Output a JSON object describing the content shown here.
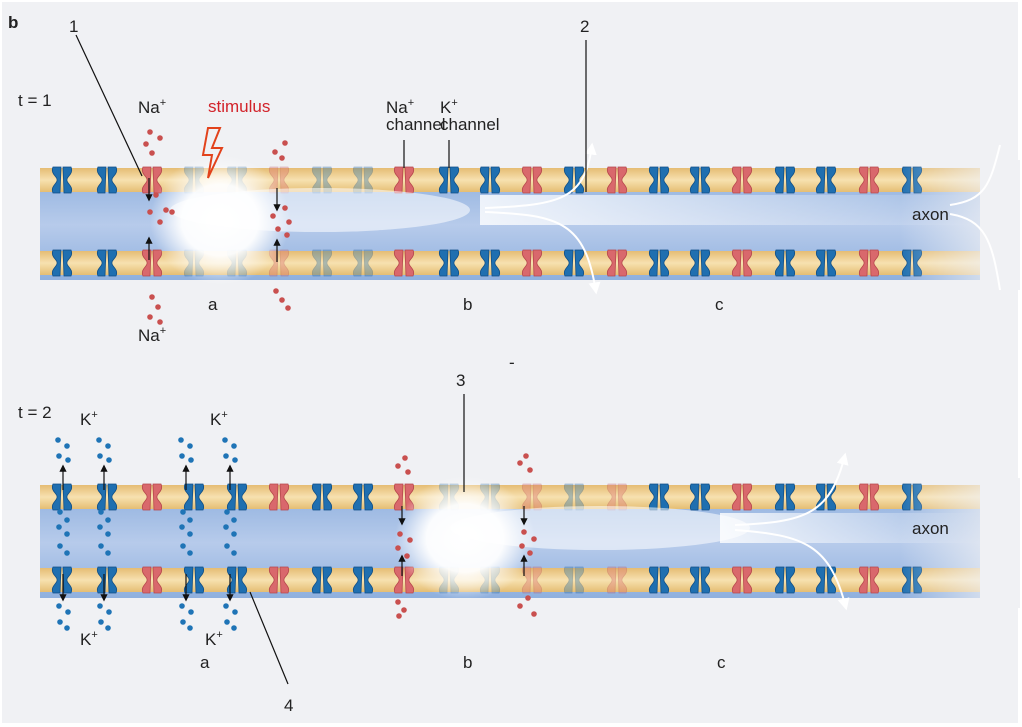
{
  "panel_letter": "b",
  "time_labels": {
    "t1": "t = 1",
    "t2": "t = 2"
  },
  "numbers": {
    "n1": "1",
    "n2": "2",
    "n3": "3",
    "n4": "4"
  },
  "labels": {
    "stimulus": "stimulus",
    "na": "Na",
    "k": "K",
    "plus": "+",
    "channel": "channel",
    "axon": "axon",
    "dash": "-",
    "region_a": "a",
    "region_b": "b",
    "region_c": "c"
  },
  "colors": {
    "membrane": "#f2d59a",
    "membrane_edge": "#e0b665",
    "axon_inside": "#a9c1e6",
    "na_channel": "#d9686c",
    "k_channel": "#1f6fb0",
    "na_ion": "#c9504f",
    "k_ion": "#1f74b6",
    "stimulus": "#d2232a"
  }
}
